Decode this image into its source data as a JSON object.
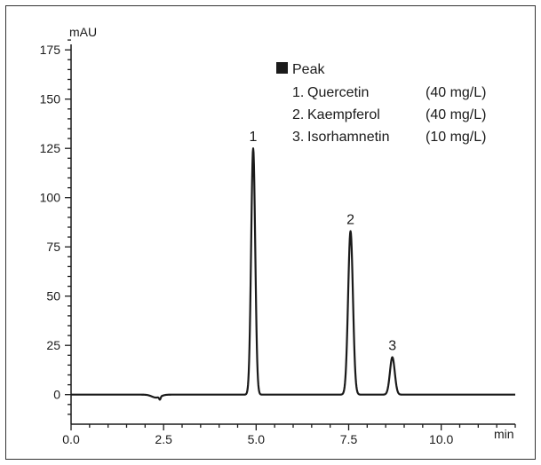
{
  "chart_data": {
    "type": "line",
    "ylabel": "mAU",
    "xlabel": "min",
    "xlim": [
      0,
      12
    ],
    "ylim": [
      -15,
      185
    ],
    "xticks": [
      0.0,
      2.5,
      5.0,
      7.5,
      10.0
    ],
    "xtick_labels": [
      "0.0",
      "2.5",
      "5.0",
      "7.5",
      "10.0"
    ],
    "yticks": [
      0,
      25,
      50,
      75,
      100,
      125,
      150,
      175
    ],
    "ytick_labels": [
      "0",
      "25",
      "50",
      "75",
      "100",
      "125",
      "150",
      "175"
    ],
    "grid": false,
    "legend_position": "top-right",
    "color": "#1a1a1a",
    "baseline": 0,
    "dip": {
      "x": 2.4,
      "y": -3
    },
    "peaks": [
      {
        "label": "1",
        "name": "Quercetin",
        "concentration": "(40 mg/L)",
        "x": 4.92,
        "y": 125
      },
      {
        "label": "2",
        "name": "Kaempferol",
        "concentration": "(40 mg/L)",
        "x": 7.55,
        "y": 83
      },
      {
        "label": "3",
        "name": "Isorhamnetin",
        "concentration": "(10 mg/L)",
        "x": 8.68,
        "y": 19
      }
    ]
  },
  "legend": {
    "title": "Peak",
    "entries": [
      {
        "number": "1.",
        "name": "Quercetin",
        "concentration": "(40 mg/L)"
      },
      {
        "number": "2.",
        "name": "Kaempferol",
        "concentration": "(40 mg/L)"
      },
      {
        "number": "3.",
        "name": "Isorhamnetin",
        "concentration": "(10 mg/L)"
      }
    ]
  }
}
